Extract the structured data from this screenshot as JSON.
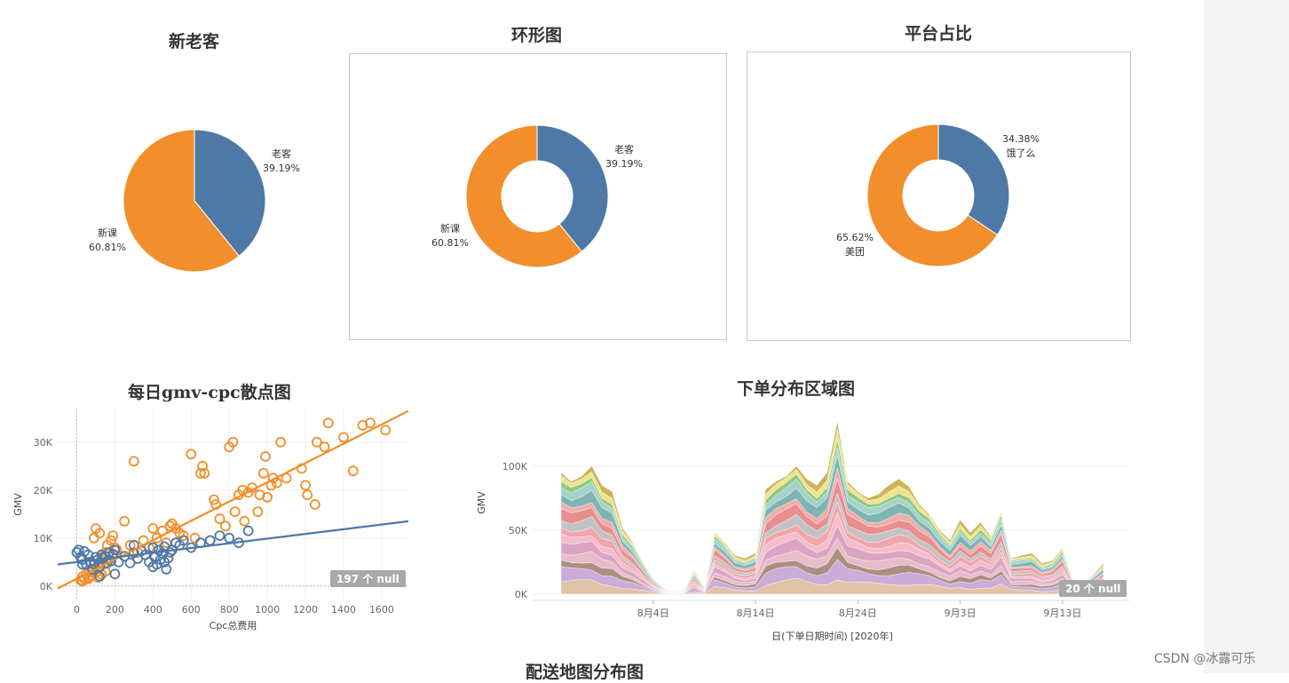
{
  "chart_data": [
    {
      "type": "pie",
      "title": "新老客",
      "slices": [
        {
          "name": "老客",
          "value": 39.19,
          "label": "39.19%",
          "color": "#4e79a7"
        },
        {
          "name": "新课",
          "value": 60.81,
          "label": "60.81%",
          "color": "#f28e2b"
        }
      ]
    },
    {
      "type": "pie",
      "title": "环形图",
      "donut": true,
      "slices": [
        {
          "name": "老客",
          "value": 39.19,
          "label": "39.19%",
          "color": "#4e79a7"
        },
        {
          "name": "新课",
          "value": 60.81,
          "label": "60.81%",
          "color": "#f28e2b"
        }
      ]
    },
    {
      "type": "pie",
      "title": "平台占比",
      "donut": true,
      "slices": [
        {
          "name": "饿了么",
          "value": 34.38,
          "label": "34.38%",
          "color": "#4e79a7"
        },
        {
          "name": "美团",
          "value": 65.62,
          "label": "65.62%",
          "color": "#f28e2b"
        }
      ]
    },
    {
      "type": "scatter",
      "title": "每日gmv-cpc散点图",
      "xlabel": "Cpc总费用",
      "ylabel": "GMV",
      "xlim": [
        -100,
        1740
      ],
      "ylim": [
        -3000,
        37000
      ],
      "xticks": [
        "0",
        "200",
        "400",
        "600",
        "800",
        "1000",
        "1200",
        "1400",
        "1600"
      ],
      "xtick_values": [
        0,
        200,
        400,
        600,
        800,
        1000,
        1200,
        1400,
        1600
      ],
      "yticks": [
        "0K",
        "10K",
        "20K",
        "30K"
      ],
      "ytick_values": [
        0,
        10000,
        20000,
        30000
      ],
      "null_note": "197 个 null",
      "series": [
        {
          "color": "#f28e2b",
          "trend": [
            [
              -100,
              -500
            ],
            [
              1740,
              36500
            ]
          ],
          "points": [
            [
              20,
              1200
            ],
            [
              30,
              2000
            ],
            [
              40,
              1500
            ],
            [
              50,
              2500
            ],
            [
              60,
              1800
            ],
            [
              70,
              3000
            ],
            [
              80,
              2200
            ],
            [
              90,
              3500
            ],
            [
              100,
              2800
            ],
            [
              110,
              4000
            ],
            [
              120,
              5000
            ],
            [
              130,
              6000
            ],
            [
              140,
              4500
            ],
            [
              150,
              7000
            ],
            [
              160,
              8500
            ],
            [
              170,
              5500
            ],
            [
              180,
              9500
            ],
            [
              190,
              10500
            ],
            [
              200,
              8000
            ],
            [
              210,
              7500
            ],
            [
              100,
              12000
            ],
            [
              120,
              11000
            ],
            [
              90,
              10000
            ],
            [
              250,
              13500
            ],
            [
              280,
              8500
            ],
            [
              300,
              26000
            ],
            [
              320,
              7000
            ],
            [
              350,
              9500
            ],
            [
              380,
              8000
            ],
            [
              400,
              12000
            ],
            [
              420,
              10000
            ],
            [
              450,
              11500
            ],
            [
              470,
              9000
            ],
            [
              490,
              12500
            ],
            [
              500,
              13000
            ],
            [
              520,
              12000
            ],
            [
              540,
              11000
            ],
            [
              560,
              10500
            ],
            [
              600,
              27500
            ],
            [
              620,
              10000
            ],
            [
              650,
              23500
            ],
            [
              660,
              25000
            ],
            [
              670,
              23500
            ],
            [
              700,
              9500
            ],
            [
              720,
              18000
            ],
            [
              730,
              17000
            ],
            [
              750,
              14000
            ],
            [
              780,
              12500
            ],
            [
              800,
              29000
            ],
            [
              820,
              30000
            ],
            [
              830,
              15500
            ],
            [
              850,
              19000
            ],
            [
              870,
              20000
            ],
            [
              880,
              13500
            ],
            [
              900,
              19500
            ],
            [
              920,
              20500
            ],
            [
              950,
              15500
            ],
            [
              960,
              19000
            ],
            [
              980,
              23500
            ],
            [
              990,
              27000
            ],
            [
              1000,
              18500
            ],
            [
              1020,
              21000
            ],
            [
              1030,
              22500
            ],
            [
              1050,
              21500
            ],
            [
              1070,
              30000
            ],
            [
              1100,
              22500
            ],
            [
              1180,
              24500
            ],
            [
              1200,
              21000
            ],
            [
              1210,
              19000
            ],
            [
              1250,
              17000
            ],
            [
              1260,
              30000
            ],
            [
              1300,
              29000
            ],
            [
              1320,
              34000
            ],
            [
              1400,
              31000
            ],
            [
              1450,
              24000
            ],
            [
              1500,
              33500
            ],
            [
              1540,
              34000
            ],
            [
              1620,
              32500
            ],
            [
              30,
              1000
            ],
            [
              60,
              1500
            ],
            [
              80,
              2200
            ],
            [
              110,
              1800
            ],
            [
              130,
              2400
            ],
            [
              150,
              3000
            ]
          ]
        },
        {
          "color": "#4e79a7",
          "trend": [
            [
              -100,
              4500
            ],
            [
              1740,
              13500
            ]
          ],
          "points": [
            [
              0,
              7000
            ],
            [
              10,
              7500
            ],
            [
              20,
              6000
            ],
            [
              30,
              5500
            ],
            [
              40,
              7200
            ],
            [
              50,
              4500
            ],
            [
              60,
              6500
            ],
            [
              70,
              5000
            ],
            [
              80,
              3500
            ],
            [
              90,
              4500
            ],
            [
              100,
              6000
            ],
            [
              110,
              5500
            ],
            [
              120,
              4000
            ],
            [
              130,
              6500
            ],
            [
              140,
              5800
            ],
            [
              150,
              6200
            ],
            [
              160,
              4800
            ],
            [
              170,
              7000
            ],
            [
              180,
              5200
            ],
            [
              190,
              6600
            ],
            [
              200,
              7500
            ],
            [
              220,
              5000
            ],
            [
              250,
              6200
            ],
            [
              280,
              4800
            ],
            [
              300,
              6900
            ],
            [
              320,
              5700
            ],
            [
              340,
              7300
            ],
            [
              360,
              6500
            ],
            [
              380,
              5000
            ],
            [
              400,
              8000
            ],
            [
              410,
              6000
            ],
            [
              420,
              4500
            ],
            [
              430,
              7500
            ],
            [
              440,
              5500
            ],
            [
              450,
              6800
            ],
            [
              460,
              8200
            ],
            [
              470,
              3500
            ],
            [
              480,
              5800
            ],
            [
              490,
              7000
            ],
            [
              500,
              7500
            ],
            [
              520,
              9000
            ],
            [
              540,
              8500
            ],
            [
              560,
              9500
            ],
            [
              600,
              8000
            ],
            [
              650,
              9000
            ],
            [
              700,
              9500
            ],
            [
              750,
              10500
            ],
            [
              800,
              10000
            ],
            [
              850,
              9000
            ],
            [
              900,
              11500
            ],
            [
              120,
              2000
            ],
            [
              200,
              2500
            ],
            [
              30,
              4500
            ],
            [
              300,
              8500
            ],
            [
              400,
              4000
            ],
            [
              460,
              5000
            ]
          ]
        }
      ]
    },
    {
      "type": "area",
      "title": "下单分布区域图",
      "xlabel": "日(下单日期时间) [2020年]",
      "ylabel": "GMV",
      "xticks": [
        "8月4日",
        "8月14日",
        "8月24日",
        "9月3日",
        "9月13日"
      ],
      "xtick_index": [
        9,
        19,
        29,
        39,
        49
      ],
      "yticks": [
        "0K",
        "50K",
        "100K"
      ],
      "ytick_values": [
        0,
        50000,
        100000
      ],
      "ylim": [
        -5000,
        145000
      ],
      "null_note": "20 个 null",
      "totals": [
        95000,
        88000,
        92000,
        100000,
        85000,
        80000,
        52000,
        40000,
        25000,
        12000,
        5000,
        2000,
        4000,
        18000,
        6000,
        48000,
        40000,
        30000,
        28000,
        32000,
        82000,
        88000,
        92000,
        100000,
        90000,
        85000,
        95000,
        135000,
        88000,
        80000,
        75000,
        78000,
        85000,
        90000,
        84000,
        70000,
        62000,
        50000,
        42000,
        58000,
        48000,
        56000,
        45000,
        65000,
        28000,
        30000,
        32000,
        24000,
        26000,
        36000,
        12000,
        8000,
        15000,
        24000
      ],
      "layer_colors": [
        "#e0c0a0",
        "#c9a8d6",
        "#a8897a",
        "#e8b8c8",
        "#d8a0c0",
        "#f4b8c8",
        "#f0a0a8",
        "#c0c0c0",
        "#e88888",
        "#f0a8a8",
        "#78b0b0",
        "#a0d0c8",
        "#88c878",
        "#f0e088",
        "#c8b050"
      ],
      "layer_shares": [
        0.1,
        0.1,
        0.06,
        0.07,
        0.08,
        0.06,
        0.06,
        0.07,
        0.08,
        0.05,
        0.08,
        0.06,
        0.04,
        0.05,
        0.04
      ]
    }
  ],
  "watermark": "CSDN @冰露可乐",
  "footer_title": "配送地图分布图"
}
